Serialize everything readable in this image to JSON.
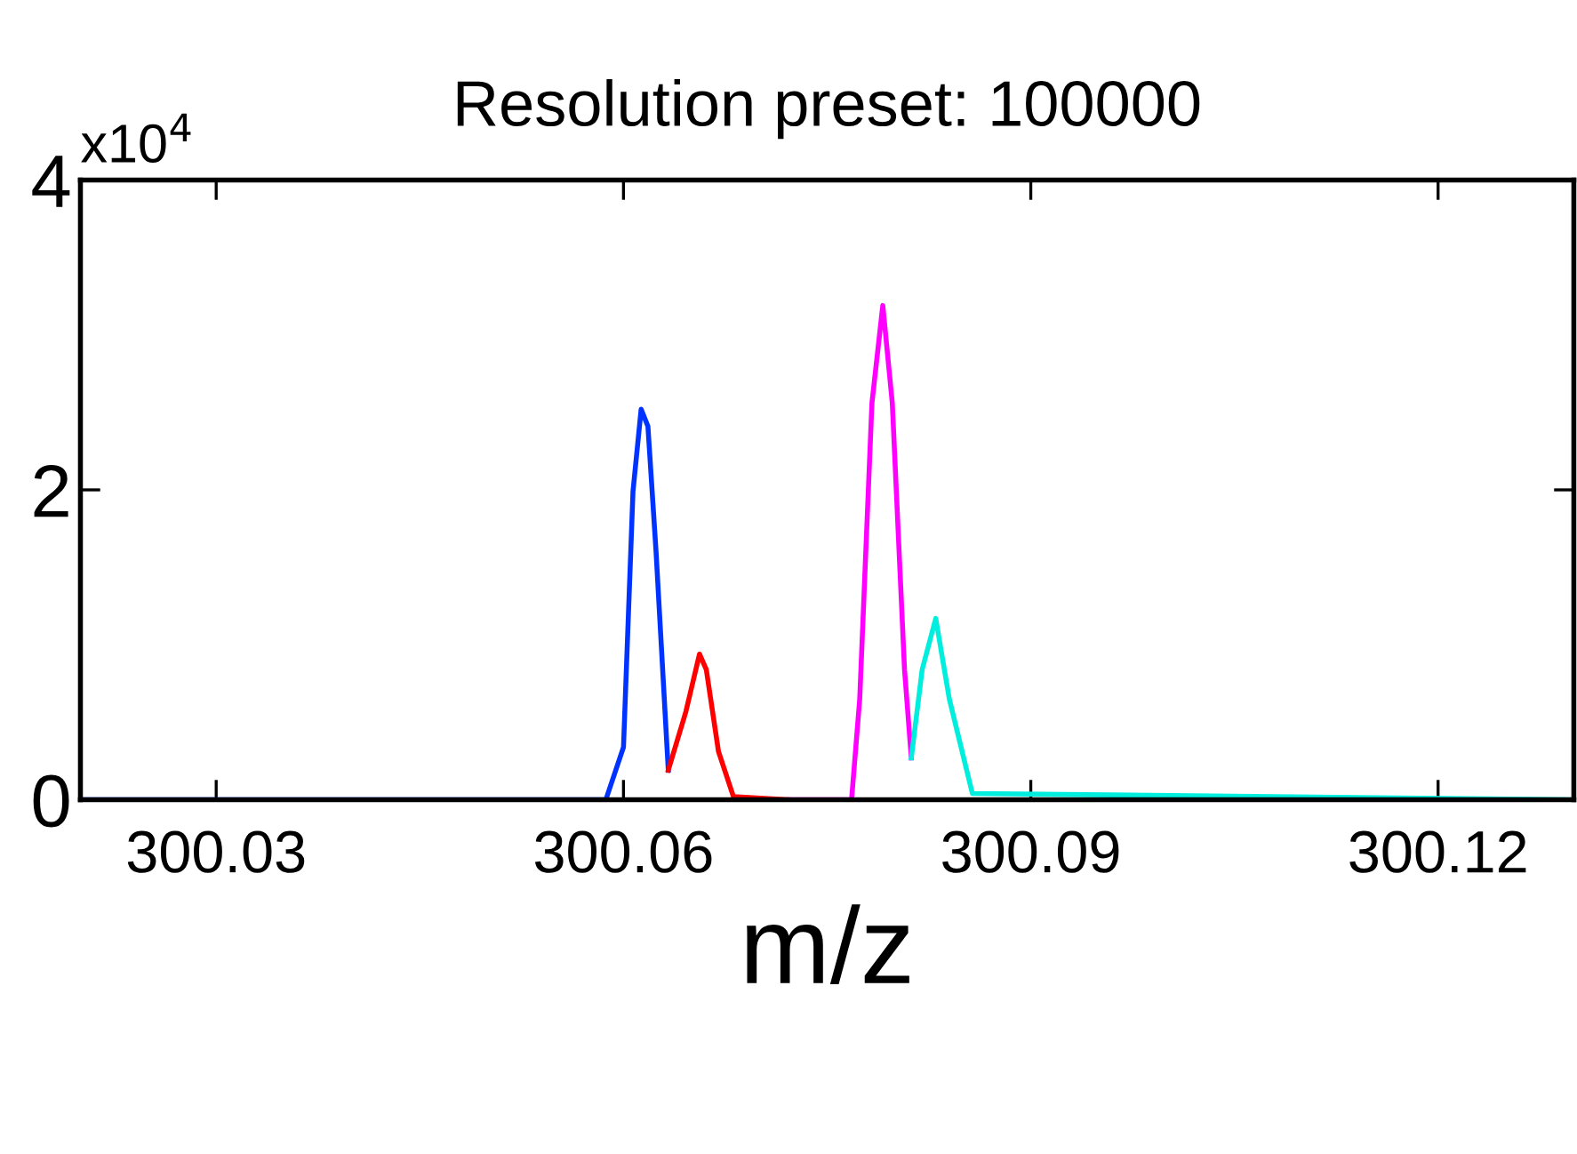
{
  "chart_data": {
    "type": "line",
    "title": "Resolution preset: 100000",
    "xlabel": "m/z",
    "annotations": [
      "x10$^{4}$"
    ],
    "xlim": [
      300.02,
      300.13
    ],
    "xticks": [
      300.03,
      300.06,
      300.09,
      300.12
    ],
    "ylim": [
      0,
      4
    ],
    "yticks": [
      0,
      2,
      4
    ],
    "grid": false,
    "legend": false,
    "marker": "none",
    "line_style": "solid",
    "series": [
      {
        "color": "#0033ff",
        "x": [
          300.02,
          300.0587,
          300.06,
          300.0607,
          300.0613,
          300.0618,
          300.0624,
          300.0633
        ],
        "values": [
          0,
          0,
          0.34,
          1.99,
          2.52,
          2.41,
          1.6,
          0.19
        ]
      },
      {
        "color": "#ff0000",
        "x": [
          300.0633,
          300.0646,
          300.0656,
          300.0661,
          300.067,
          300.0681,
          300.0722
        ],
        "values": [
          0.19,
          0.57,
          0.94,
          0.84,
          0.31,
          0.02,
          0
        ]
      },
      {
        "color": "#ff00ff",
        "x": [
          300.0722,
          300.0768,
          300.0774,
          300.0783,
          300.0791,
          300.0798,
          300.0807,
          300.0812
        ],
        "values": [
          0,
          0,
          0.65,
          2.56,
          3.19,
          2.56,
          0.84,
          0.27
        ]
      },
      {
        "color": "#00eedd",
        "x": [
          300.0812,
          300.082,
          300.083,
          300.084,
          300.0857,
          300.13
        ],
        "values": [
          0.27,
          0.84,
          1.17,
          0.65,
          0.04,
          0
        ]
      }
    ]
  }
}
